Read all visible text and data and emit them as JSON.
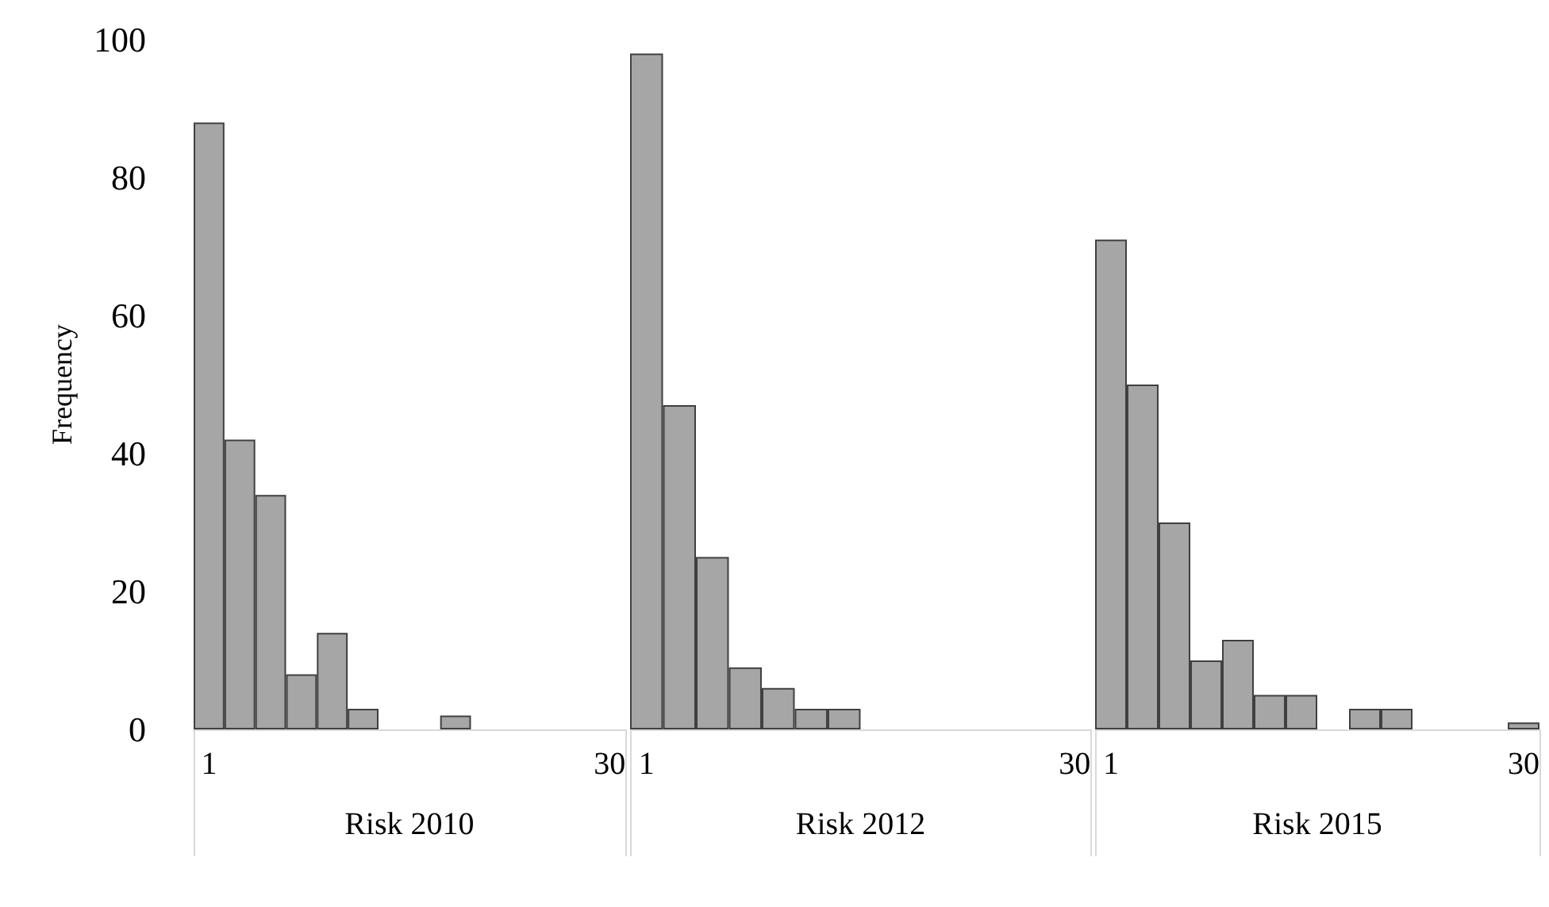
{
  "chart_data": [
    {
      "type": "bar",
      "categories": [
        "1",
        null,
        null,
        null,
        null,
        null,
        null,
        null,
        null,
        null,
        null,
        null,
        null,
        "30"
      ],
      "values": [
        88,
        42,
        34,
        8,
        14,
        3,
        0,
        0,
        2,
        0,
        0,
        0,
        0,
        0
      ],
      "color": "#a6a6a6",
      "ylim": [
        0,
        100
      ],
      "yticks": [
        0,
        20,
        40,
        60,
        80,
        100
      ],
      "ylabel": "Frequency",
      "xlabel": "Risk 2010",
      "grid": false
    },
    {
      "type": "bar",
      "categories": [
        "1",
        null,
        null,
        null,
        null,
        null,
        null,
        null,
        null,
        null,
        null,
        null,
        null,
        "30"
      ],
      "values": [
        98,
        47,
        25,
        9,
        6,
        3,
        3,
        0,
        0,
        0,
        0,
        0,
        0,
        0
      ],
      "color": "#a6a6a6",
      "ylim": [
        0,
        100
      ],
      "yticks": [
        0,
        20,
        40,
        60,
        80,
        100
      ],
      "xlabel": "Risk 2012",
      "grid": false,
      "tick_labels": "x"
    },
    {
      "type": "bar",
      "categories": [
        "1",
        null,
        null,
        null,
        null,
        null,
        null,
        null,
        null,
        null,
        null,
        null,
        null,
        "30"
      ],
      "values": [
        71,
        50,
        30,
        10,
        13,
        5,
        5,
        0,
        3,
        3,
        0,
        0,
        0,
        1
      ],
      "color": "#a6a6a6",
      "ylim": [
        0,
        100
      ],
      "yticks": [
        0,
        20,
        40,
        60,
        80,
        100
      ],
      "xlabel": "Risk 2015",
      "grid": false,
      "tick_labels": "x"
    }
  ]
}
